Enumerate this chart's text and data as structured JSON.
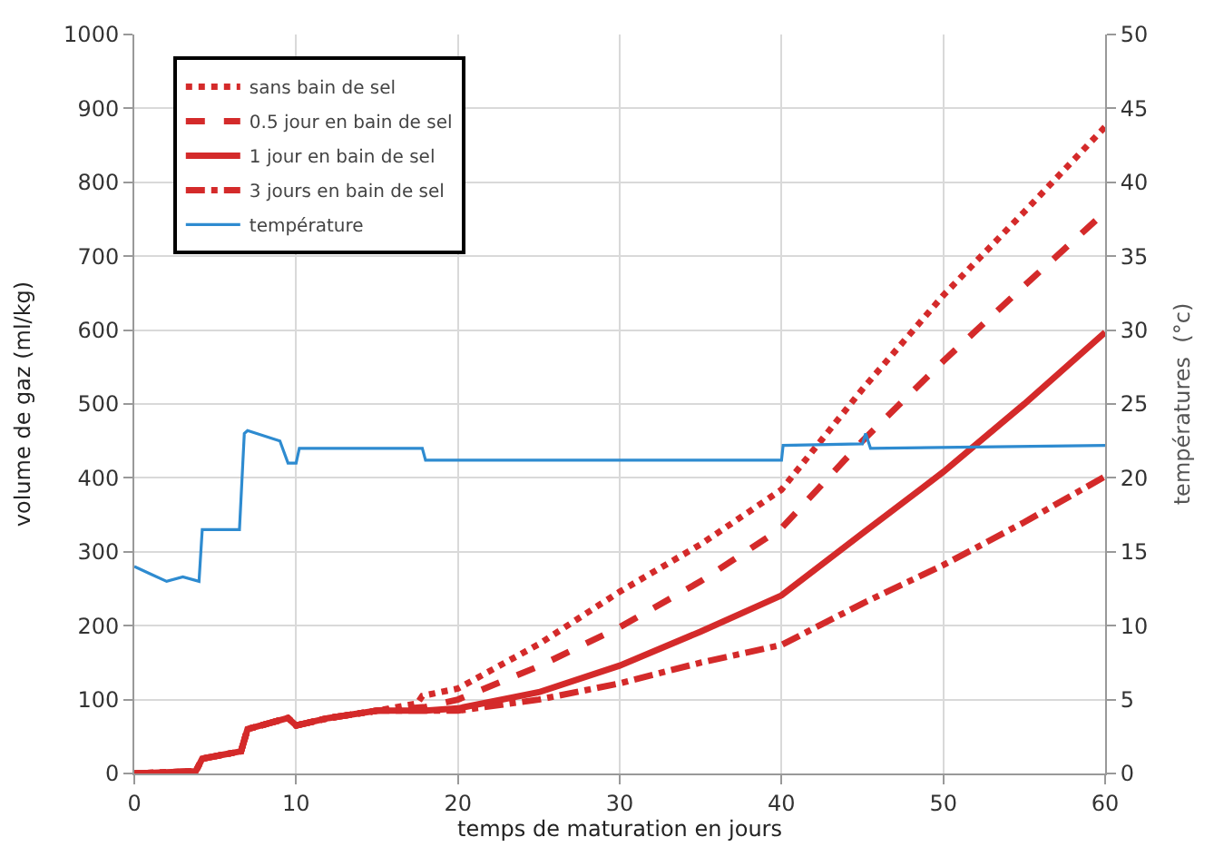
{
  "chart_data": {
    "type": "line",
    "xlabel": "temps de maturation en jours",
    "ylabel": "volume de gaz (ml/kg)",
    "y2label": "températures  (°c)",
    "xlim": [
      0,
      60
    ],
    "xticks": [
      0,
      10,
      20,
      30,
      40,
      50,
      60
    ],
    "ylim": [
      0,
      1000
    ],
    "yticks": [
      0,
      100,
      200,
      300,
      400,
      500,
      600,
      700,
      800,
      900,
      1000
    ],
    "y2lim": [
      0,
      50
    ],
    "y2ticks": [
      0,
      5,
      10,
      15,
      20,
      25,
      30,
      35,
      40,
      45,
      50
    ],
    "grid": true,
    "legend": "top left",
    "marker": "none",
    "series": [
      {
        "name": "sans bain de sel",
        "color": "#d42a2a",
        "line_style": "dotted",
        "x": [
          0,
          3.8,
          4.2,
          6.6,
          7,
          9.5,
          10,
          12,
          15,
          17.5,
          17.8,
          20,
          25,
          30,
          35,
          40,
          45,
          50,
          55,
          60
        ],
        "values": [
          0,
          3,
          20,
          30,
          60,
          75,
          65,
          75,
          85,
          95,
          105,
          115,
          175,
          246,
          310,
          384,
          520,
          647,
          760,
          875
        ]
      },
      {
        "name": "0.5 jour en bain de sel",
        "color": "#d42a2a",
        "line_style": "dashed",
        "x": [
          0,
          3.8,
          4.2,
          6.6,
          7,
          9.5,
          10,
          12,
          15,
          18,
          20,
          25,
          30,
          35,
          40,
          45,
          50,
          55,
          60
        ],
        "values": [
          0,
          3,
          20,
          30,
          60,
          75,
          65,
          75,
          85,
          90,
          100,
          145,
          198,
          260,
          332,
          450,
          558,
          660,
          760
        ]
      },
      {
        "name": "1 jour en bain de sel",
        "color": "#d42a2a",
        "line_style": "solid",
        "x": [
          0,
          3.8,
          4.2,
          6.6,
          7,
          9.5,
          10,
          12,
          15,
          18,
          20,
          25,
          30,
          35,
          40,
          45,
          50,
          55,
          60
        ],
        "values": [
          0,
          3,
          20,
          30,
          60,
          75,
          65,
          75,
          85,
          85,
          88,
          110,
          146,
          192,
          241,
          325,
          408,
          500,
          597
        ]
      },
      {
        "name": "3 jours en bain de sel",
        "color": "#d42a2a",
        "line_style": "dashdot",
        "x": [
          0,
          3.8,
          4.2,
          6.6,
          7,
          9.5,
          10,
          12,
          15,
          18,
          20,
          25,
          30,
          35,
          40,
          45,
          50,
          55,
          60
        ],
        "values": [
          0,
          3,
          20,
          30,
          60,
          75,
          65,
          75,
          85,
          85,
          85,
          100,
          122,
          150,
          174,
          230,
          282,
          340,
          402
        ]
      },
      {
        "name": "température",
        "color": "#2e8bd0",
        "line_style": "solid",
        "axis": "y2",
        "x": [
          0,
          1,
          2,
          3,
          4,
          4.2,
          6.5,
          6.8,
          7,
          9,
          9.5,
          10,
          10.2,
          17.8,
          18,
          40,
          40.1,
          45,
          45.2,
          45.5,
          60
        ],
        "values": [
          14,
          13.5,
          13,
          13.3,
          13,
          16.5,
          16.5,
          23,
          23.2,
          22.5,
          21,
          21,
          22,
          22,
          21.2,
          21.2,
          22.2,
          22.3,
          23,
          22,
          22.2
        ]
      }
    ]
  }
}
